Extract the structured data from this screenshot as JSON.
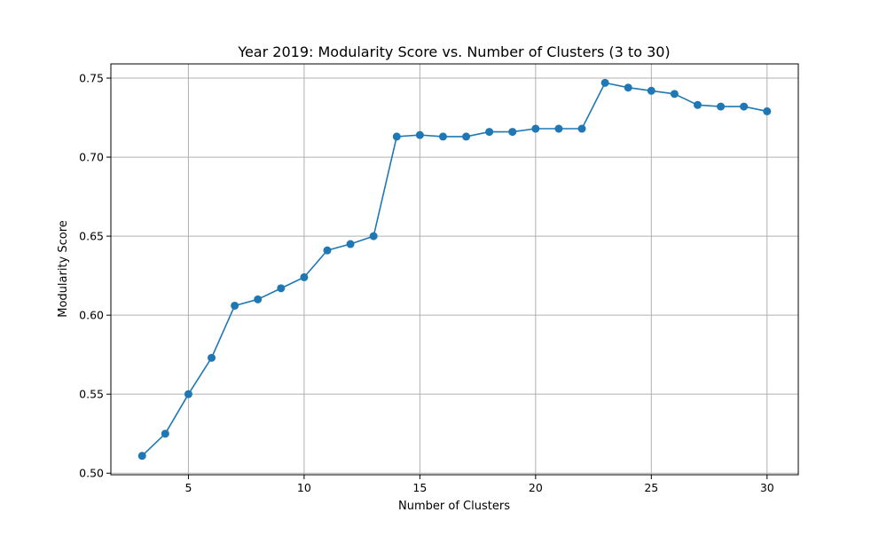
{
  "chart_data": {
    "type": "line",
    "title": "Year 2019: Modularity Score vs. Number of Clusters (3 to 30)",
    "xlabel": "Number of Clusters",
    "ylabel": "Modularity Score",
    "xlim": [
      1.65,
      31.35
    ],
    "ylim": [
      0.499,
      0.759
    ],
    "xticks": [
      5,
      10,
      15,
      20,
      25,
      30
    ],
    "yticks": [
      0.5,
      0.55,
      0.6,
      0.65,
      0.7,
      0.75
    ],
    "xtick_labels": [
      "5",
      "10",
      "15",
      "20",
      "25",
      "30"
    ],
    "ytick_labels": [
      "0.50",
      "0.55",
      "0.60",
      "0.65",
      "0.70",
      "0.75"
    ],
    "grid": true,
    "legend": "none",
    "colors": {
      "line": "#1f77b4",
      "grid": "#b0b0b0",
      "axes": "#000000"
    },
    "series": [
      {
        "x": [
          3,
          4,
          5,
          6,
          7,
          8,
          9,
          10,
          11,
          12,
          13,
          14,
          15,
          16,
          17,
          18,
          19,
          20,
          21,
          22,
          23,
          24,
          25,
          26,
          27,
          28,
          29,
          30
        ],
        "values": [
          0.511,
          0.525,
          0.55,
          0.573,
          0.606,
          0.61,
          0.617,
          0.624,
          0.641,
          0.645,
          0.65,
          0.713,
          0.714,
          0.713,
          0.713,
          0.716,
          0.716,
          0.718,
          0.718,
          0.718,
          0.747,
          0.744,
          0.742,
          0.74,
          0.733,
          0.732,
          0.732,
          0.729
        ]
      }
    ]
  }
}
